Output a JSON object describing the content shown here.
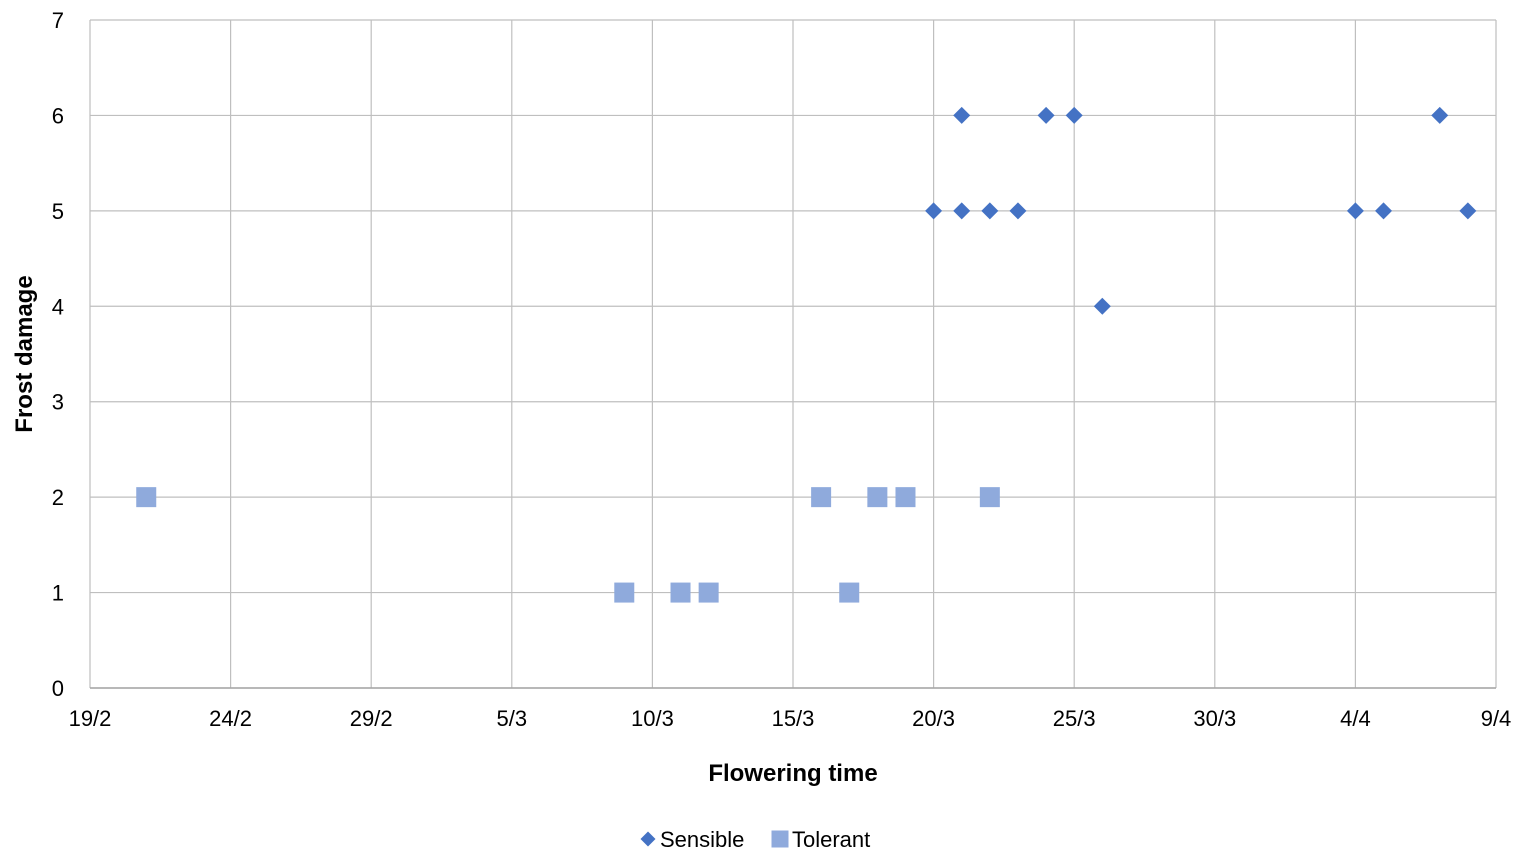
{
  "chart_data": {
    "type": "scatter",
    "title": "",
    "xlabel": "Flowering time",
    "ylabel": "Frost damage",
    "x_ticks": [
      "19/2",
      "24/2",
      "29/2",
      "5/3",
      "10/3",
      "15/3",
      "20/3",
      "25/3",
      "30/3",
      "4/4",
      "9/4"
    ],
    "x_range": [
      "19/2",
      "9/4"
    ],
    "ylim": [
      0,
      7
    ],
    "y_ticks": [
      0,
      1,
      2,
      3,
      4,
      5,
      6,
      7
    ],
    "grid": true,
    "legend_position": "bottom",
    "series": [
      {
        "name": "Sensible",
        "marker": "diamond",
        "color": "#4472C4",
        "points": [
          {
            "x": "20/3",
            "y": 5
          },
          {
            "x": "21/3",
            "y": 6
          },
          {
            "x": "21/3",
            "y": 5
          },
          {
            "x": "22/3",
            "y": 5
          },
          {
            "x": "23/3",
            "y": 5
          },
          {
            "x": "24/3",
            "y": 6
          },
          {
            "x": "25/3",
            "y": 6
          },
          {
            "x": "26/3",
            "y": 4
          },
          {
            "x": "4/4",
            "y": 5
          },
          {
            "x": "5/4",
            "y": 5
          },
          {
            "x": "7/4",
            "y": 6
          },
          {
            "x": "8/4",
            "y": 5
          }
        ]
      },
      {
        "name": "Tolerant",
        "marker": "square",
        "color": "#8FAADC",
        "points": [
          {
            "x": "21/2",
            "y": 2
          },
          {
            "x": "9/3",
            "y": 1
          },
          {
            "x": "11/3",
            "y": 1
          },
          {
            "x": "12/3",
            "y": 1
          },
          {
            "x": "16/3",
            "y": 2
          },
          {
            "x": "17/3",
            "y": 1
          },
          {
            "x": "18/3",
            "y": 2
          },
          {
            "x": "19/3",
            "y": 2
          },
          {
            "x": "22/3",
            "y": 2
          }
        ]
      }
    ]
  }
}
